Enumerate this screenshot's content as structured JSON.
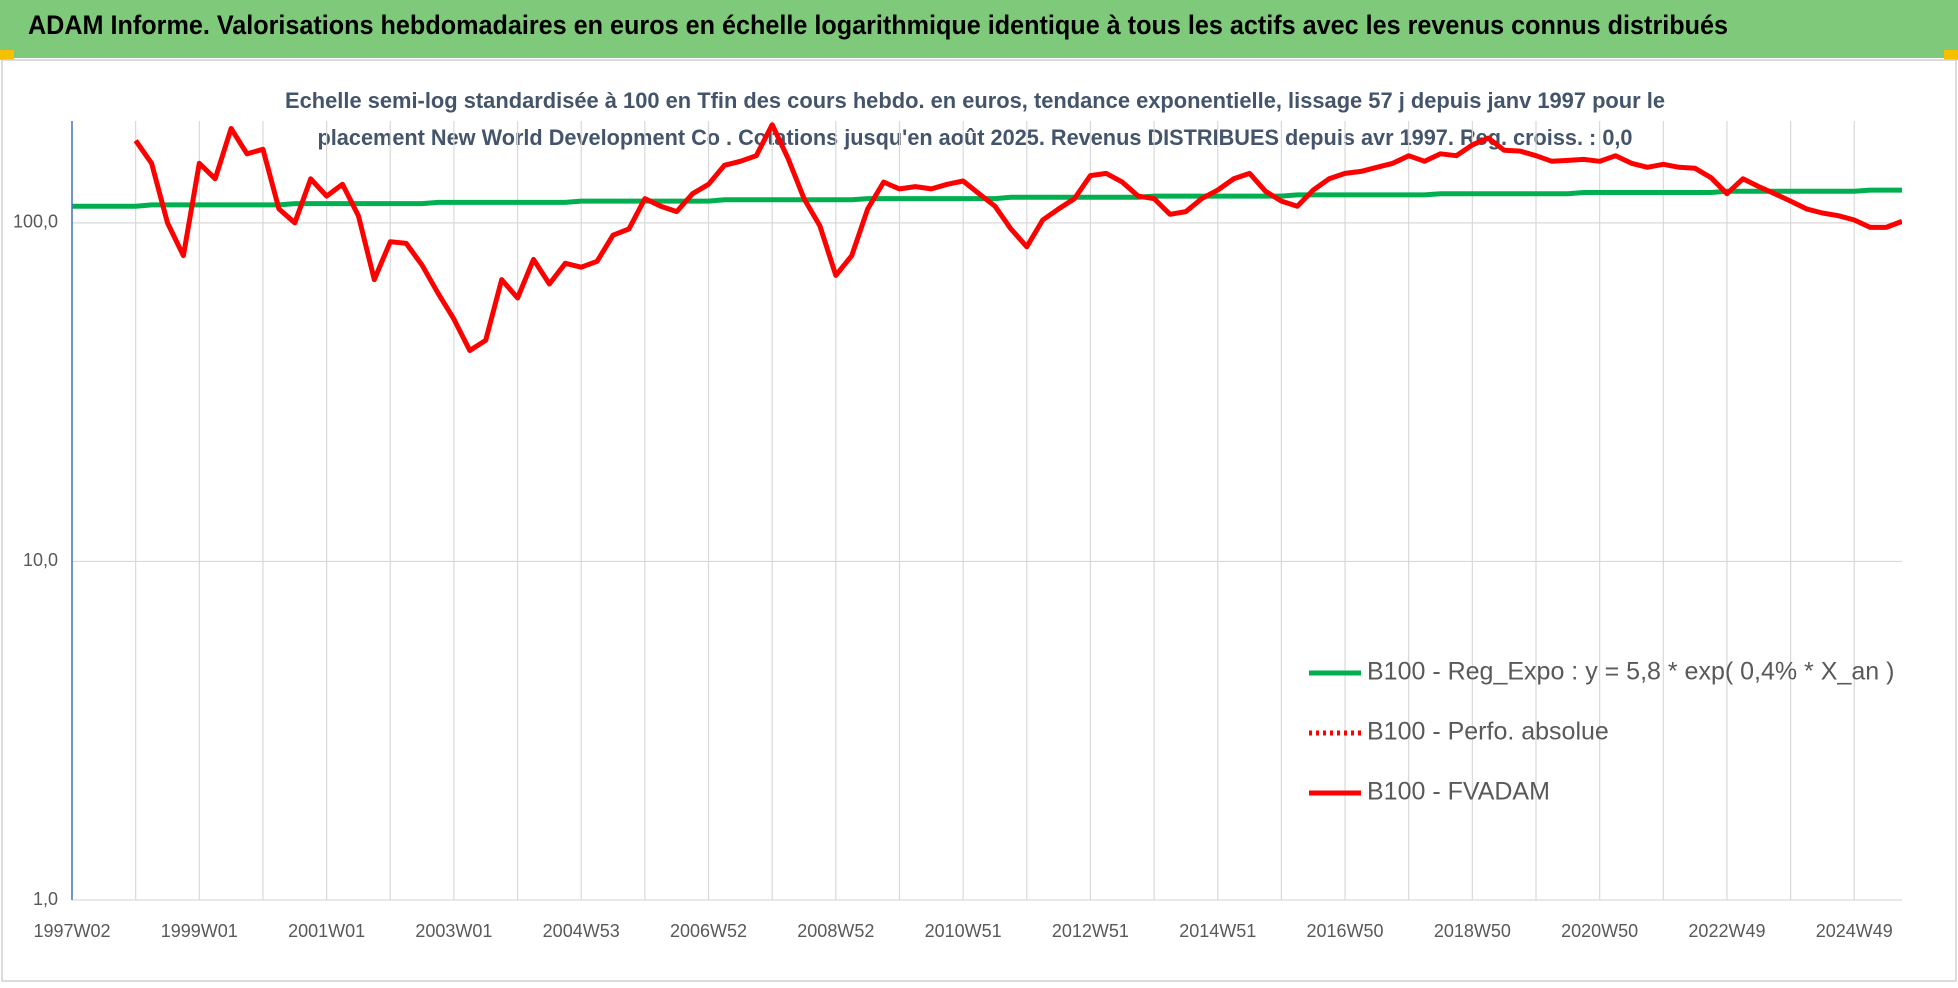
{
  "header": {
    "title": "ADAM Informe. Valorisations hebdomadaires en euros en échelle logarithmique identique à tous les actifs avec les revenus connus distribués"
  },
  "chart_data": {
    "type": "line",
    "title": [
      "Echelle semi-log standardisée à 100 en Tfin des cours hebdo. en euros, tendance exponentielle, lissage 57 j depuis janv 1997 pour le",
      "placement New World Development Co . Cotations jusqu'en août 2025. Revenus DISTRIBUES depuis avr 1997. Reg. croiss. : 0,0"
    ],
    "log_scale": true,
    "grid": true,
    "legend": "right",
    "ylim": [
      1,
      200
    ],
    "yticks": [
      {
        "value": 1,
        "label": "1,0"
      },
      {
        "value": 10,
        "label": "10,0"
      },
      {
        "value": 100,
        "label": "100,0"
      }
    ],
    "categories": [
      "1997W02",
      null,
      null,
      null,
      null,
      null,
      null,
      null,
      "1999W01",
      null,
      null,
      null,
      null,
      null,
      null,
      null,
      "2001W01",
      null,
      null,
      null,
      null,
      null,
      null,
      null,
      "2003W01",
      null,
      null,
      null,
      null,
      null,
      null,
      null,
      "2004W53",
      null,
      null,
      null,
      null,
      null,
      null,
      null,
      "2006W52",
      null,
      null,
      null,
      null,
      null,
      null,
      null,
      "2008W52",
      null,
      null,
      null,
      null,
      null,
      null,
      null,
      "2010W51",
      null,
      null,
      null,
      null,
      null,
      null,
      null,
      "2012W51",
      null,
      null,
      null,
      null,
      null,
      null,
      null,
      "2014W51",
      null,
      null,
      null,
      null,
      null,
      null,
      null,
      "2016W50",
      null,
      null,
      null,
      null,
      null,
      null,
      null,
      "2018W50",
      null,
      null,
      null,
      null,
      null,
      null,
      null,
      "2020W50",
      null,
      null,
      null,
      null,
      null,
      null,
      null,
      "2022W49",
      null,
      null,
      null,
      null,
      null,
      null,
      null,
      "2024W49",
      null,
      null,
      null
    ],
    "series": [
      {
        "name": "B100 - Reg_Expo : y = 5,8 * exp( 0,4% *  X_an )",
        "color": "#00b050",
        "style": "solid",
        "values": [
          112,
          112,
          112,
          112,
          112,
          113,
          113,
          113,
          113,
          113,
          113,
          113,
          113,
          113,
          114,
          114,
          114,
          114,
          114,
          114,
          114,
          114,
          114,
          115,
          115,
          115,
          115,
          115,
          115,
          115,
          115,
          115,
          116,
          116,
          116,
          116,
          116,
          116,
          116,
          116,
          116,
          117,
          117,
          117,
          117,
          117,
          117,
          117,
          117,
          117,
          118,
          118,
          118,
          118,
          118,
          118,
          118,
          118,
          118,
          119,
          119,
          119,
          119,
          119,
          119,
          119,
          119,
          119,
          120,
          120,
          120,
          120,
          120,
          120,
          120,
          120,
          120,
          121,
          121,
          121,
          121,
          121,
          121,
          121,
          121,
          121,
          122,
          122,
          122,
          122,
          122,
          122,
          122,
          122,
          122,
          123,
          123,
          123,
          123,
          123,
          123,
          123,
          123,
          123,
          124,
          124,
          124,
          124,
          124,
          124,
          124,
          124,
          124,
          125,
          125,
          125
        ]
      },
      {
        "name": "B100 - Perfo. absolue",
        "color": "#ff0000",
        "style": "dotted",
        "values": [
          null,
          null,
          null,
          null,
          null,
          null,
          null,
          null,
          null,
          null,
          null,
          null,
          null,
          null,
          null,
          null,
          null,
          null,
          null,
          null,
          null,
          null,
          null,
          null,
          null,
          null,
          null,
          null,
          null,
          null,
          null,
          null,
          null,
          null,
          null,
          null,
          null,
          null,
          null,
          null,
          null,
          null,
          null,
          null,
          null,
          null,
          null,
          null,
          null,
          null,
          null,
          null,
          null,
          null,
          null,
          null,
          null,
          null,
          null,
          null,
          null,
          null,
          null,
          null,
          null,
          null,
          null,
          null,
          null,
          null,
          null,
          null,
          null,
          null,
          null,
          null,
          null,
          null,
          null,
          null,
          null,
          null,
          null,
          null,
          null,
          null,
          null,
          null,
          null,
          null,
          null,
          null,
          null,
          null,
          null,
          null,
          null,
          null,
          null,
          null,
          null,
          null,
          null,
          null,
          null,
          null,
          null,
          null,
          null,
          null,
          null,
          null,
          null,
          null,
          null,
          null
        ]
      },
      {
        "name": "B100 - FVADAM",
        "color": "#ff0000",
        "style": "solid",
        "values": [
          null,
          null,
          null,
          null,
          175,
          150,
          100,
          80,
          150,
          135,
          190,
          160,
          165,
          110,
          100,
          135,
          120,
          130,
          105,
          68,
          88,
          87,
          75,
          62,
          52,
          42,
          45,
          68,
          60,
          78,
          66,
          76,
          74,
          77,
          92,
          96,
          118,
          112,
          108,
          122,
          130,
          148,
          152,
          158,
          195,
          155,
          118,
          98,
          70,
          80,
          110,
          132,
          126,
          128,
          126,
          130,
          133,
          122,
          112,
          96,
          85,
          102,
          110,
          118,
          138,
          140,
          132,
          120,
          118,
          106,
          108,
          118,
          125,
          135,
          140,
          124,
          116,
          112,
          125,
          135,
          140,
          142,
          146,
          150,
          158,
          152,
          160,
          158,
          170,
          178,
          164,
          163,
          158,
          152,
          153,
          154,
          152,
          158,
          150,
          146,
          149,
          146,
          145,
          136,
          122,
          135,
          128,
          122,
          116,
          110,
          107,
          105,
          102,
          97,
          97,
          101
        ]
      }
    ]
  }
}
